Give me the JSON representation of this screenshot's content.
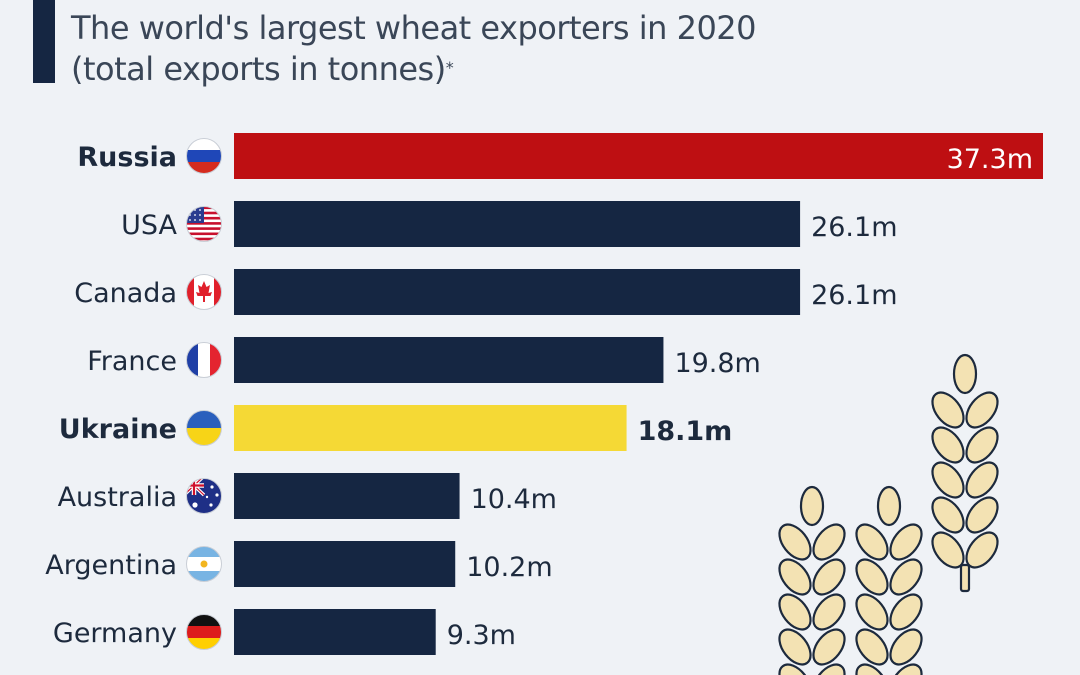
{
  "header": {
    "title_line1": "The world's largest wheat exporters in 2020",
    "title_line2": "(total exports in tonnes)",
    "footnote_marker": "*"
  },
  "colors": {
    "background": "#eff2f6",
    "navy": "#152642",
    "russia_red": "#be0f12",
    "ukraine_yellow": "#f5d935",
    "text": "#1d2a3d",
    "wheat_fill": "#f3e2b3",
    "wheat_stroke": "#1d2a3d"
  },
  "chart_data": {
    "type": "bar",
    "orientation": "horizontal",
    "title": "The world's largest wheat exporters in 2020 (total exports in tonnes)*",
    "categories": [
      "Russia",
      "USA",
      "Canada",
      "France",
      "Ukraine",
      "Australia",
      "Argentina",
      "Germany"
    ],
    "values": [
      37.3,
      26.1,
      26.1,
      19.8,
      18.1,
      10.4,
      10.2,
      9.3
    ],
    "value_labels": [
      "37.3m",
      "26.1m",
      "26.1m",
      "19.8m",
      "18.1m",
      "10.4m",
      "10.2m",
      "9.3m"
    ],
    "flag_icons": [
      "russia-flag-icon",
      "usa-flag-icon",
      "canada-flag-icon",
      "france-flag-icon",
      "ukraine-flag-icon",
      "australia-flag-icon",
      "argentina-flag-icon",
      "germany-flag-icon"
    ],
    "highlighted": [
      "Russia",
      "Ukraine"
    ],
    "unit": "million tonnes",
    "xlim": [
      0,
      37.3
    ],
    "grid": false,
    "legend": "none",
    "decoration": "wheat-stalks-icon"
  }
}
